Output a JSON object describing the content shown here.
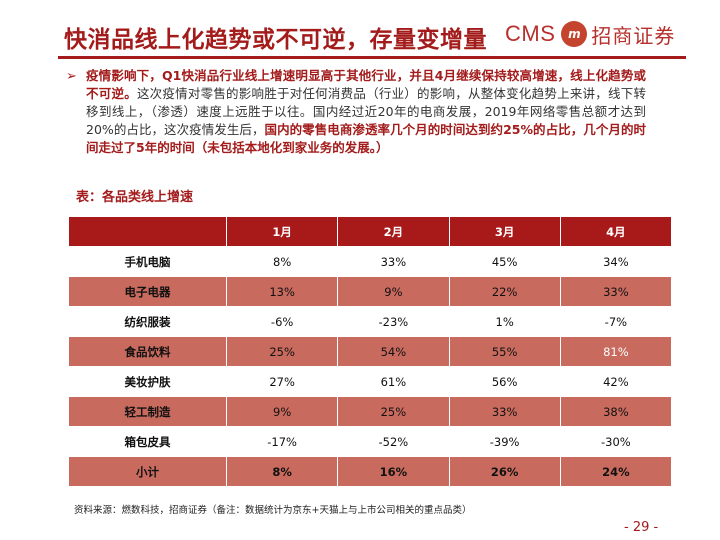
{
  "header": {
    "title": "快消品线上化趋势或不可逆，存量变增量",
    "logo_text": "CMS",
    "logo_mark": "m",
    "logo_cn": "招商证券"
  },
  "bullet": {
    "icon": "arrow-bullet-icon",
    "marker": "➢",
    "part1": "疫情影响下，Q1快消品行业线上增速明显高于其他行业，并且4月继续保持较高增速，线上化趋势或不可逆。",
    "part2": "这次疫情对零售的影响胜于对任何消费品（行业）的影响，从整体变化趋势上来讲，线下转移到线上，（渗透）速度上远胜于以往。国内经过近20年的电商发展，2019年网络零售总额才达到20%的占比，这次疫情发生后，",
    "part3": "国内的零售电商渗透率几个月的时间达到约25%的占比，几个月的时间走过了5年的时间（未包括本地化到家业务的发展。）"
  },
  "table": {
    "caption": "表：各品类线上增速",
    "headers": [
      "",
      "1月",
      "2月",
      "3月",
      "4月"
    ],
    "rows": [
      {
        "name": "手机电脑",
        "values": [
          "8%",
          "33%",
          "45%",
          "34%"
        ]
      },
      {
        "name": "电子电器",
        "values": [
          "13%",
          "9%",
          "22%",
          "33%"
        ]
      },
      {
        "name": "纺织服装",
        "values": [
          "-6%",
          "-23%",
          "1%",
          "-7%"
        ]
      },
      {
        "name": "食品饮料",
        "values": [
          "25%",
          "54%",
          "55%",
          "81%"
        ]
      },
      {
        "name": "美妆护肤",
        "values": [
          "27%",
          "61%",
          "56%",
          "42%"
        ]
      },
      {
        "name": "轻工制造",
        "values": [
          "9%",
          "25%",
          "33%",
          "38%"
        ]
      },
      {
        "name": "箱包皮具",
        "values": [
          "-17%",
          "-52%",
          "-39%",
          "-30%"
        ]
      },
      {
        "name": "小计",
        "values": [
          "8%",
          "16%",
          "26%",
          "24%"
        ]
      }
    ]
  },
  "footer": {
    "source": "资料来源：燃数科技，招商证券（备注：数据统计为京东+天猫上与上市公司相关的重点品类）",
    "page": "- 29 -"
  },
  "colors": {
    "brand_red": "#a31b1b",
    "header_row": "#a81a1a",
    "band_row": "#c96a5e"
  }
}
